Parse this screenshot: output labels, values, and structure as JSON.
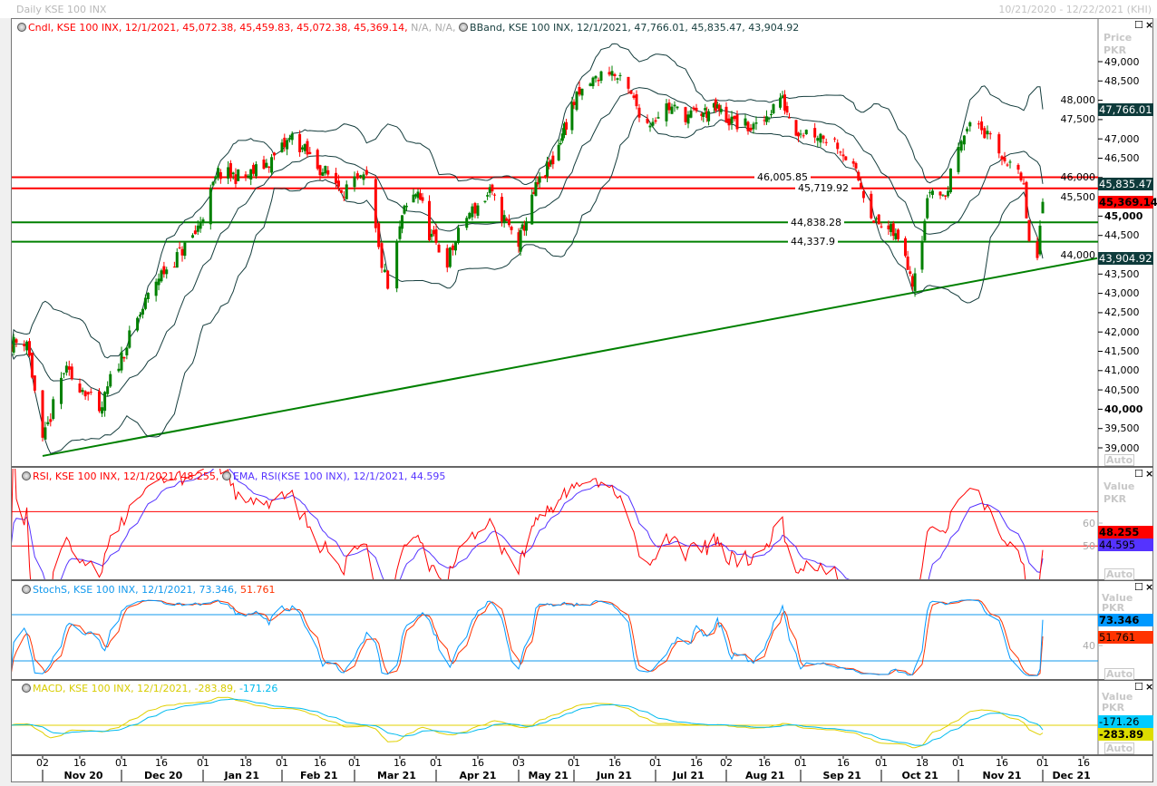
{
  "window": {
    "title": "Daily KSE 100 INX",
    "date_range": "10/21/2020 - 12/22/2021 (KHI)"
  },
  "colors": {
    "up": "#008000",
    "down": "#ff0000",
    "bband": "#153d3d",
    "rsi": "#ff0000",
    "rsi_ema": "#5533ff",
    "stoch_k": "#0099ff",
    "stoch_d": "#ff3300",
    "macd": "#e0d000",
    "macd_signal": "#00bbee"
  },
  "panels": {
    "price": {
      "legend_cndl": "Cndl, KSE 100 INX, 12/1/2021, 45,072.38, 45,459.83, 45,072.38, 45,369.14,",
      "legend_na": " N/A, N/A,",
      "legend_bband": "BBand, KSE 100 INX, 12/1/2021, 47,766.01, 45,835.47, 43,904.92",
      "axis_title": "Price",
      "axis_unit": "PKR",
      "auto": "Auto",
      "ticks": [
        49000,
        48500,
        48000,
        47500,
        47000,
        46500,
        46000,
        45500,
        45000,
        44500,
        44000,
        43500,
        43000,
        42500,
        42000,
        41500,
        41000,
        40500,
        40000,
        39500,
        39000
      ],
      "bold_ticks": [
        45000,
        40000
      ],
      "markers": [
        {
          "label": "47,766.01",
          "value": 47766.01,
          "bg": "#0e3b3b",
          "fg": "#ffffff",
          "bold": false
        },
        {
          "label": "45,835.47",
          "value": 45835.47,
          "bg": "#0e3b3b",
          "fg": "#ffffff",
          "bold": false
        },
        {
          "label": "45,369.14",
          "value": 45369.14,
          "bg": "#ff0000",
          "fg": "#000000",
          "bold": true
        },
        {
          "label": "43,904.92",
          "value": 43904.92,
          "bg": "#0e3b3b",
          "fg": "#ffffff",
          "bold": false
        }
      ],
      "hlines": [
        {
          "label": "46,005.85",
          "value": 46005.85,
          "color": "#ff0000"
        },
        {
          "label": "45,719.92",
          "value": 45719.92,
          "color": "#ff0000"
        },
        {
          "label": "44,838.28",
          "value": 44838.28,
          "color": "#008000"
        },
        {
          "label": "44,337.9",
          "value": 44337.9,
          "color": "#008000"
        }
      ],
      "trendline": {
        "from": {
          "date": "2020-11-02",
          "value": 38790
        },
        "to": {
          "date": "2021-12-21",
          "value": 43910
        },
        "color": "#008000"
      }
    },
    "rsi": {
      "legend_rsi": "RSI, KSE 100 INX, 12/1/2021, 48.255,",
      "legend_ema": "EMA, RSI(KSE 100 INX), 12/1/2021, 44.595",
      "axis_title": "Value",
      "axis_unit": "PKR",
      "auto": "Auto",
      "ticks": [
        60,
        50
      ],
      "levels": [
        65,
        50
      ],
      "markers": [
        {
          "label": "48.255",
          "bg": "#ff0000",
          "fg": "#000000",
          "bold": true
        },
        {
          "label": "44.595",
          "bg": "#5533ff",
          "fg": "#000000",
          "bold": false
        }
      ]
    },
    "stoch": {
      "legend_k": "StochS, KSE 100 INX, 12/1/2021, 73.346,",
      "legend_d": " 51.761",
      "axis_title": "Value",
      "axis_unit": "PKR",
      "auto": "Auto",
      "ticks": [
        40
      ],
      "levels": [
        80,
        20
      ],
      "markers": [
        {
          "label": "73.346",
          "bg": "#0099ff",
          "fg": "#000000",
          "bold": true
        },
        {
          "label": "51.761",
          "bg": "#ff3300",
          "fg": "#000000",
          "bold": false
        }
      ]
    },
    "macd": {
      "legend_macd": "MACD, KSE 100 INX, 12/1/2021, -283.89,",
      "legend_signal": " -171.26",
      "axis_title": "Value",
      "axis_unit": "PKR",
      "auto": "Auto",
      "markers": [
        {
          "label": "-171.26",
          "bg": "#00ccff",
          "fg": "#000000",
          "bold": false
        },
        {
          "label": "-283.89",
          "bg": "#dddd00",
          "fg": "#000000",
          "bold": true
        }
      ]
    }
  },
  "x_axis": {
    "days": [
      {
        "date": "2020-11-02",
        "label": "02"
      },
      {
        "date": "2020-11-16",
        "label": "16"
      },
      {
        "date": "2020-12-01",
        "label": "01"
      },
      {
        "date": "2020-12-16",
        "label": "16"
      },
      {
        "date": "2021-01-01",
        "label": "01"
      },
      {
        "date": "2021-01-18",
        "label": "18"
      },
      {
        "date": "2021-02-01",
        "label": "01"
      },
      {
        "date": "2021-02-16",
        "label": "16"
      },
      {
        "date": "2021-03-01",
        "label": "01"
      },
      {
        "date": "2021-03-16",
        "label": "16"
      },
      {
        "date": "2021-04-01",
        "label": "01"
      },
      {
        "date": "2021-04-16",
        "label": "16"
      },
      {
        "date": "2021-05-03",
        "label": "03"
      },
      {
        "date": "2021-06-01",
        "label": "01"
      },
      {
        "date": "2021-06-16",
        "label": "16"
      },
      {
        "date": "2021-07-01",
        "label": "01"
      },
      {
        "date": "2021-07-16",
        "label": "16"
      },
      {
        "date": "2021-08-02",
        "label": "02"
      },
      {
        "date": "2021-08-16",
        "label": "16"
      },
      {
        "date": "2021-09-01",
        "label": "01"
      },
      {
        "date": "2021-09-16",
        "label": "16"
      },
      {
        "date": "2021-10-01",
        "label": "01"
      },
      {
        "date": "2021-10-18",
        "label": "18"
      },
      {
        "date": "2021-11-01",
        "label": "01"
      },
      {
        "date": "2021-11-16",
        "label": "16"
      },
      {
        "date": "2021-12-01",
        "label": "01"
      },
      {
        "date": "2021-12-16",
        "label": "16"
      }
    ],
    "months": [
      {
        "start": "2020-11-02",
        "end": "2020-12-01",
        "label": "Nov 20"
      },
      {
        "start": "2020-12-01",
        "end": "2021-01-01",
        "label": "Dec 20"
      },
      {
        "start": "2021-01-01",
        "end": "2021-02-01",
        "label": "Jan 21"
      },
      {
        "start": "2021-02-01",
        "end": "2021-03-01",
        "label": "Feb 21"
      },
      {
        "start": "2021-03-01",
        "end": "2021-04-01",
        "label": "Mar 21"
      },
      {
        "start": "2021-04-01",
        "end": "2021-05-03",
        "label": "Apr 21"
      },
      {
        "start": "2021-05-03",
        "end": "2021-06-01",
        "label": "May 21"
      },
      {
        "start": "2021-06-01",
        "end": "2021-07-01",
        "label": "Jun 21"
      },
      {
        "start": "2021-07-01",
        "end": "2021-08-02",
        "label": "Jul 21"
      },
      {
        "start": "2021-08-02",
        "end": "2021-09-01",
        "label": "Aug 21"
      },
      {
        "start": "2021-09-01",
        "end": "2021-10-01",
        "label": "Sep 21"
      },
      {
        "start": "2021-10-01",
        "end": "2021-11-01",
        "label": "Oct 21"
      },
      {
        "start": "2021-11-01",
        "end": "2021-12-01",
        "label": "Nov 21"
      },
      {
        "start": "2021-12-01",
        "end": "2021-12-31",
        "label": "Dec 21"
      }
    ]
  },
  "chart_data": {
    "type": "candlestick",
    "title": "Daily KSE 100 INX",
    "ylabel": "Price (PKR)",
    "ylim": [
      38800,
      49200
    ],
    "indicators": [
      "Bollinger Bands (20,2)",
      "RSI + EMA",
      "Slow Stochastic",
      "MACD"
    ],
    "last_candle": {
      "date": "2021-12-01",
      "open": 45072.38,
      "high": 45459.83,
      "low": 45072.38,
      "close": 45369.14
    },
    "bband_last": {
      "upper": 47766.01,
      "middle": 45835.47,
      "lower": 43904.92
    },
    "anchors": [
      {
        "date": "2020-10-21",
        "close": 41700
      },
      {
        "date": "2020-10-27",
        "close": 41800
      },
      {
        "date": "2020-11-02",
        "close": 39100
      },
      {
        "date": "2020-11-10",
        "close": 41000
      },
      {
        "date": "2020-11-18",
        "close": 40500
      },
      {
        "date": "2020-11-23",
        "close": 39800
      },
      {
        "date": "2020-11-27",
        "close": 40750
      },
      {
        "date": "2020-12-07",
        "close": 42300
      },
      {
        "date": "2020-12-14",
        "close": 43350
      },
      {
        "date": "2020-12-22",
        "close": 43950
      },
      {
        "date": "2020-12-29",
        "close": 44550
      },
      {
        "date": "2021-01-07",
        "close": 46100
      },
      {
        "date": "2021-01-18",
        "close": 46000
      },
      {
        "date": "2021-01-28",
        "close": 46450
      },
      {
        "date": "2021-02-05",
        "close": 47050
      },
      {
        "date": "2021-02-15",
        "close": 46300
      },
      {
        "date": "2021-02-25",
        "close": 45700
      },
      {
        "date": "2021-03-05",
        "close": 45950
      },
      {
        "date": "2021-03-09",
        "close": 44100
      },
      {
        "date": "2021-03-12",
        "close": 43100
      },
      {
        "date": "2021-03-17",
        "close": 45000
      },
      {
        "date": "2021-03-24",
        "close": 45700
      },
      {
        "date": "2021-03-29",
        "close": 44550
      },
      {
        "date": "2021-04-05",
        "close": 43850
      },
      {
        "date": "2021-04-12",
        "close": 45000
      },
      {
        "date": "2021-04-21",
        "close": 45600
      },
      {
        "date": "2021-04-28",
        "close": 44800
      },
      {
        "date": "2021-05-03",
        "close": 44300
      },
      {
        "date": "2021-05-12",
        "close": 45700
      },
      {
        "date": "2021-05-21",
        "close": 46450
      },
      {
        "date": "2021-05-31",
        "close": 47850
      },
      {
        "date": "2021-06-07",
        "close": 48450
      },
      {
        "date": "2021-06-14",
        "close": 48800
      },
      {
        "date": "2021-06-21",
        "close": 48200
      },
      {
        "date": "2021-06-28",
        "close": 47400
      },
      {
        "date": "2021-07-05",
        "close": 47850
      },
      {
        "date": "2021-07-13",
        "close": 47600
      },
      {
        "date": "2021-07-28",
        "close": 47750
      },
      {
        "date": "2021-08-05",
        "close": 47400
      },
      {
        "date": "2021-08-13",
        "close": 47250
      },
      {
        "date": "2021-08-23",
        "close": 48100
      },
      {
        "date": "2021-08-30",
        "close": 47250
      },
      {
        "date": "2021-09-07",
        "close": 47150
      },
      {
        "date": "2021-09-14",
        "close": 46900
      },
      {
        "date": "2021-09-22",
        "close": 45950
      },
      {
        "date": "2021-09-29",
        "close": 44800
      },
      {
        "date": "2021-10-06",
        "close": 44550
      },
      {
        "date": "2021-10-11",
        "close": 44050
      },
      {
        "date": "2021-10-14",
        "close": 43350
      },
      {
        "date": "2021-10-18",
        "close": 44550
      },
      {
        "date": "2021-10-21",
        "close": 45700
      },
      {
        "date": "2021-10-27",
        "close": 45500
      },
      {
        "date": "2021-11-02",
        "close": 47150
      },
      {
        "date": "2021-11-08",
        "close": 47400
      },
      {
        "date": "2021-11-15",
        "close": 46550
      },
      {
        "date": "2021-11-19",
        "close": 46450
      },
      {
        "date": "2021-11-24",
        "close": 45700
      },
      {
        "date": "2021-11-26",
        "close": 44300
      },
      {
        "date": "2021-11-29",
        "close": 43850
      },
      {
        "date": "2021-11-30",
        "close": 44550
      },
      {
        "date": "2021-12-01",
        "close": 45369.14
      }
    ]
  }
}
